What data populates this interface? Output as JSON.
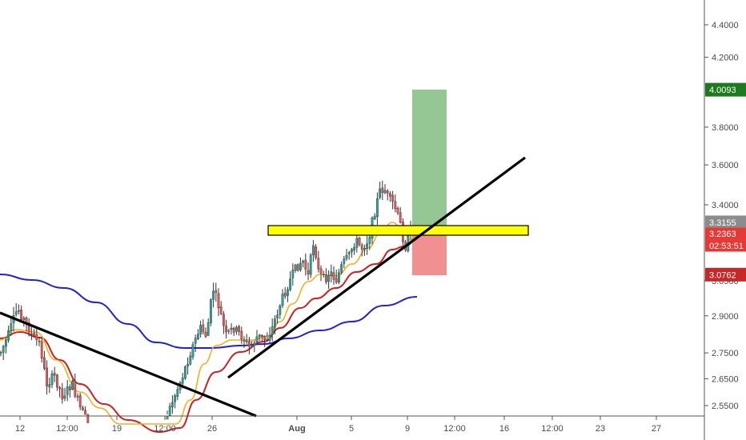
{
  "chart_data": {
    "type": "candlestick",
    "y_axis": {
      "position": "right",
      "scale": "log",
      "ticks": [
        "4.4000",
        "4.2000",
        "3.8000",
        "3.6000",
        "3.4000",
        "3.0500",
        "2.9000",
        "2.7500",
        "2.6500",
        "2.5500"
      ],
      "tick_values": [
        4.4,
        4.2,
        3.8,
        3.6,
        3.4,
        3.05,
        2.9,
        2.75,
        2.65,
        2.55
      ]
    },
    "x_axis": {
      "ticks": [
        "12",
        "12:00",
        "19",
        "12:00",
        "26",
        "Aug",
        "5",
        "9",
        "12:00",
        "16",
        "12:00",
        "23",
        "27"
      ],
      "bold_ticks": [
        "Aug"
      ]
    },
    "price_badges": [
      {
        "label": "4.0093",
        "value": 4.0093,
        "color": "#1e7a1e"
      },
      {
        "label": "3.3155",
        "value": 3.3155,
        "color": "#8c8c8c"
      },
      {
        "label": "3.2363",
        "value": 3.2363,
        "color": "#e53935"
      },
      {
        "label": "02:53:51",
        "value": 3.2363,
        "color": "#e53935"
      },
      {
        "label": "3.0762",
        "value": 3.0762,
        "color": "#c62828"
      }
    ],
    "grid": false,
    "annotations": {
      "resistance_zone": {
        "value_low": 3.25,
        "value_high": 3.3
      },
      "position": {
        "entry": 3.3155,
        "target": 4.0093,
        "stop": 3.0762
      }
    },
    "series": [
      {
        "type": "candles",
        "color_up": "#26a69a",
        "color_down": "#ef5350",
        "color_wick": "#333333"
      },
      {
        "type": "ma",
        "color": "#f2b01e"
      },
      {
        "type": "ma",
        "color": "#cc1f1f"
      },
      {
        "type": "ma",
        "color": "#2222cc"
      }
    ]
  }
}
